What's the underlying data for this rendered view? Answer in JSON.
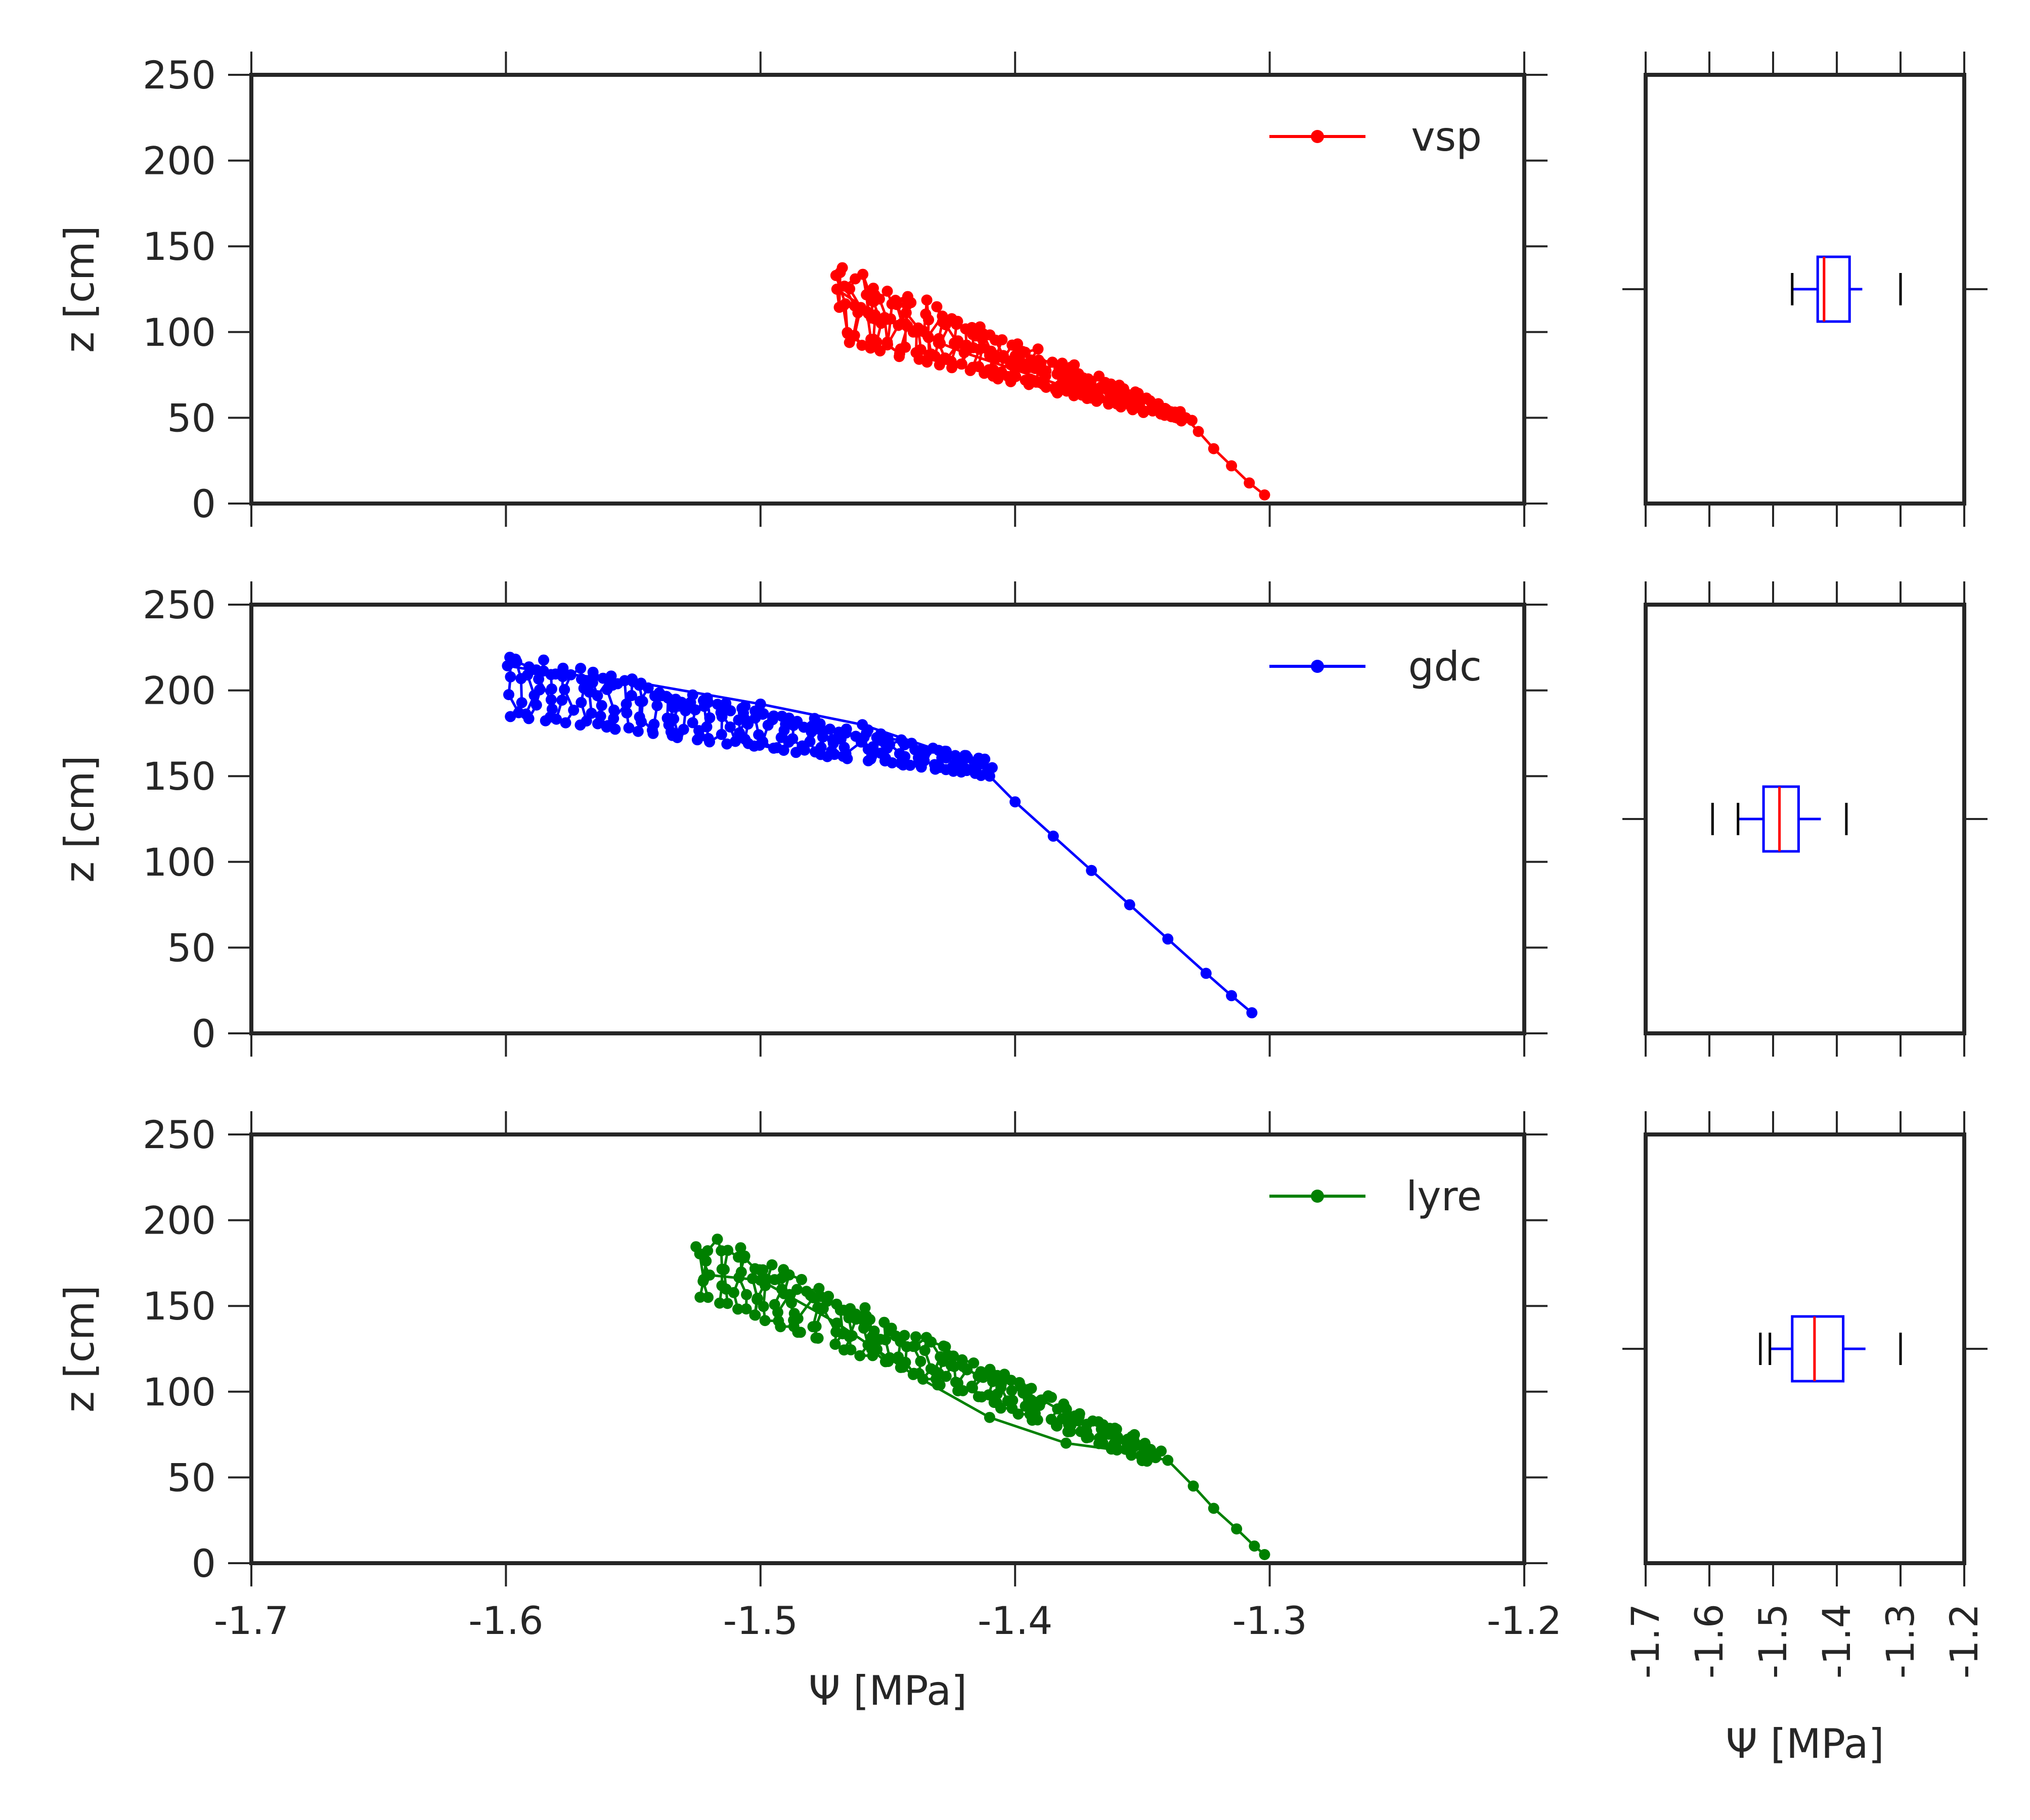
{
  "chart_data": [
    {
      "type": "line",
      "panel": "scatter-vsp",
      "series": [
        {
          "name": "vsp",
          "color": "#ff0000"
        }
      ],
      "xlabel": "",
      "ylabel": "z [cm]",
      "xlim": [
        -1.7,
        -1.2
      ],
      "ylim": [
        0,
        250
      ],
      "xticks": [],
      "yticks": [
        "0",
        "50",
        "100",
        "150",
        "200",
        "250"
      ],
      "legend": "top-right",
      "grid": false,
      "spine": [
        [
          -1.302,
          5
        ],
        [
          -1.308,
          12
        ],
        [
          -1.315,
          22
        ],
        [
          -1.322,
          32
        ],
        [
          -1.328,
          42
        ],
        [
          -1.333,
          50
        ],
        [
          -1.345,
          55
        ],
        [
          -1.36,
          60
        ],
        [
          -1.38,
          68
        ],
        [
          -1.4,
          78
        ],
        [
          -1.42,
          88
        ],
        [
          -1.44,
          100
        ],
        [
          -1.455,
          110
        ],
        [
          -1.47,
          125
        ]
      ],
      "band": {
        "x_start": -1.47,
        "x_end": -1.333,
        "upper_start": 142,
        "upper_end": 52,
        "lower_start": 95,
        "lower_end": 48
      }
    },
    {
      "type": "line",
      "panel": "scatter-gdc",
      "series": [
        {
          "name": "gdc",
          "color": "#0000ff"
        }
      ],
      "xlabel": "",
      "ylabel": "z [cm]",
      "xlim": [
        -1.7,
        -1.2
      ],
      "ylim": [
        0,
        250
      ],
      "xticks": [],
      "yticks": [
        "0",
        "50",
        "100",
        "150",
        "200",
        "250"
      ],
      "legend": "top-right",
      "grid": false,
      "spine": [
        [
          -1.307,
          12
        ],
        [
          -1.315,
          22
        ],
        [
          -1.325,
          35
        ],
        [
          -1.34,
          55
        ],
        [
          -1.355,
          75
        ],
        [
          -1.37,
          95
        ],
        [
          -1.385,
          115
        ],
        [
          -1.4,
          135
        ],
        [
          -1.41,
          150
        ],
        [
          -1.43,
          165
        ],
        [
          -1.46,
          180
        ],
        [
          -1.5,
          192
        ],
        [
          -1.55,
          205
        ],
        [
          -1.59,
          212
        ]
      ],
      "band": {
        "x_start": -1.6,
        "x_end": -1.41,
        "upper_start": 225,
        "upper_end": 160,
        "lower_start": 185,
        "lower_end": 150
      }
    },
    {
      "type": "line",
      "panel": "scatter-lyre",
      "series": [
        {
          "name": "lyre",
          "color": "#008000"
        }
      ],
      "xlabel": "Ψ [MPa]",
      "ylabel": "z [cm]",
      "xlim": [
        -1.7,
        -1.2
      ],
      "ylim": [
        0,
        250
      ],
      "xticks": [
        "-1.7",
        "-1.6",
        "-1.5",
        "-1.4",
        "-1.3",
        "-1.2"
      ],
      "yticks": [
        "0",
        "50",
        "100",
        "150",
        "200",
        "250"
      ],
      "legend": "top-right",
      "grid": false,
      "spine": [
        [
          -1.302,
          5
        ],
        [
          -1.306,
          10
        ],
        [
          -1.313,
          20
        ],
        [
          -1.322,
          32
        ],
        [
          -1.33,
          45
        ],
        [
          -1.34,
          60
        ],
        [
          -1.36,
          66
        ],
        [
          -1.38,
          70
        ],
        [
          -1.41,
          85
        ],
        [
          -1.44,
          110
        ],
        [
          -1.47,
          140
        ],
        [
          -1.5,
          165
        ],
        [
          -1.52,
          168
        ]
      ],
      "band": {
        "x_start": -1.523,
        "x_end": -1.345,
        "upper_start": 195,
        "upper_end": 68,
        "lower_start": 155,
        "lower_end": 58
      }
    },
    {
      "type": "box",
      "panel": "box-vsp",
      "orientation": "horizontal",
      "xlim": [
        -1.7,
        -1.2
      ],
      "xticks": [],
      "xlabel": "",
      "whisker_low": -1.47,
      "q1": -1.43,
      "median": -1.42,
      "q3": -1.38,
      "whisker_high": -1.36,
      "cap_high": -1.3
    },
    {
      "type": "box",
      "panel": "box-gdc",
      "orientation": "horizontal",
      "xlim": [
        -1.7,
        -1.2
      ],
      "xticks": [],
      "xlabel": "",
      "whisker_low": -1.555,
      "q1": -1.515,
      "median": -1.49,
      "q3": -1.46,
      "whisker_high": -1.425,
      "cap_low": -1.595,
      "cap_high": -1.385
    },
    {
      "type": "box",
      "panel": "box-lyre",
      "orientation": "horizontal",
      "xlim": [
        -1.7,
        -1.2
      ],
      "xticks": [
        "-1.7",
        "-1.6",
        "-1.5",
        "-1.4",
        "-1.3",
        "-1.2"
      ],
      "xlabel": "Ψ [MPa]",
      "whisker_low": -1.505,
      "q1": -1.47,
      "median": -1.435,
      "q3": -1.39,
      "whisker_high": -1.355,
      "cap_low": -1.52,
      "cap_high": -1.3
    }
  ],
  "colors": {
    "box_edge": "#0000ff",
    "median": "#ff0000",
    "cap": "#000000",
    "frame": "#262626"
  }
}
